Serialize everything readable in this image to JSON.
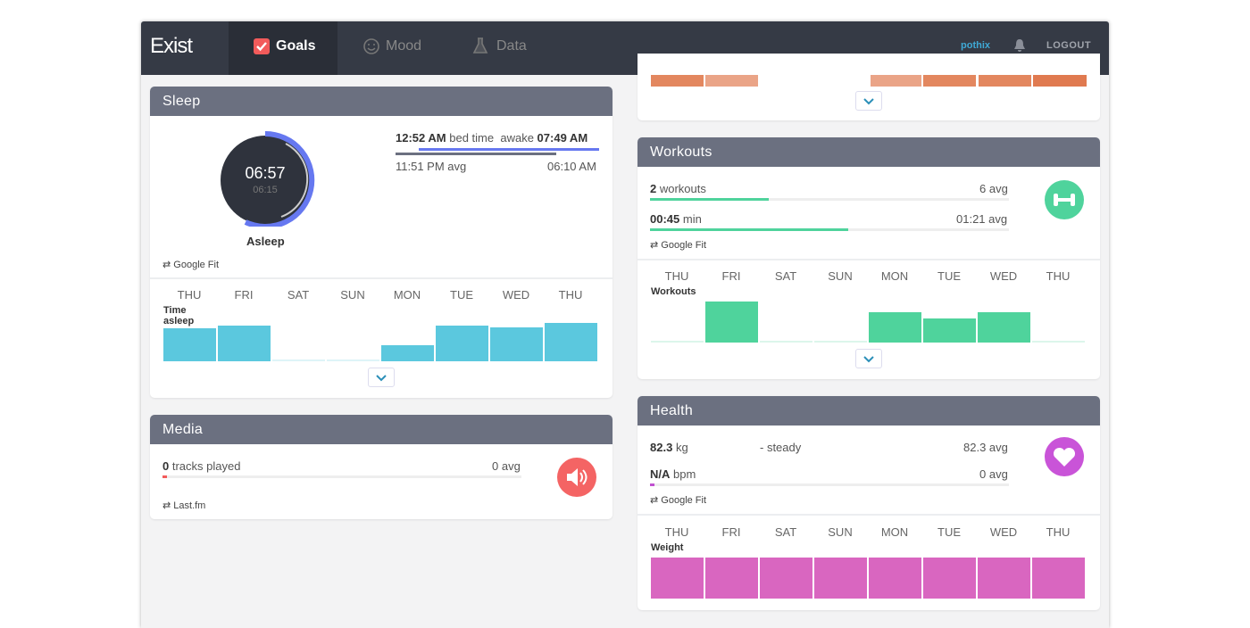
{
  "nav": {
    "logo": "Exist",
    "tabs": [
      "Goals",
      "Mood",
      "Data"
    ],
    "user": "pothix",
    "logout": "LOGOUT"
  },
  "sleep": {
    "title": "Sleep",
    "asleep_time": "06:57",
    "asleep_avg": "06:15",
    "asleep_label": "Asleep",
    "bed_time": "12:52 AM",
    "bed_label": "bed time",
    "awake_label": "awake",
    "awake_time": "07:49 AM",
    "bed_avg": "11:51 PM avg",
    "awake_avg": "06:10 AM",
    "source": "Google Fit",
    "chart": {
      "type": "bar",
      "title": "Time asleep",
      "categories": [
        "THU",
        "FRI",
        "SAT",
        "SUN",
        "MON",
        "TUE",
        "WED",
        "THU"
      ],
      "values": [
        6.0,
        6.6,
        0,
        0,
        2.9,
        6.5,
        6.2,
        6.95
      ],
      "ylim": [
        0,
        7.5
      ],
      "color": "#5bc8de"
    }
  },
  "media": {
    "title": "Media",
    "count": "0",
    "label": "tracks played",
    "avg": "0 avg",
    "source": "Last.fm"
  },
  "workouts": {
    "title": "Workouts",
    "rows": [
      {
        "value": "2",
        "label": "workouts",
        "avg": "6 avg"
      },
      {
        "value": "00:45",
        "label": "min",
        "avg": "01:21 avg"
      }
    ],
    "source": "Google Fit",
    "chart": {
      "type": "bar",
      "title": "Workouts",
      "categories": [
        "THU",
        "FRI",
        "SAT",
        "SUN",
        "MON",
        "TUE",
        "WED",
        "THU"
      ],
      "values": [
        0,
        90,
        0,
        0,
        66,
        52,
        66,
        0
      ],
      "ylim": [
        0,
        90
      ],
      "color": "#4fd39c"
    }
  },
  "health": {
    "title": "Health",
    "rows": [
      {
        "value": "82.3",
        "label": "kg",
        "note": "- steady",
        "avg": "82.3 avg"
      },
      {
        "value": "N/A",
        "label": "bpm",
        "avg": "0 avg"
      }
    ],
    "source": "Google Fit",
    "chart": {
      "type": "bar",
      "title": "Weight",
      "categories": [
        "THU",
        "FRI",
        "SAT",
        "SUN",
        "MON",
        "TUE",
        "WED",
        "THU"
      ],
      "values": [
        82.3,
        82.3,
        82.3,
        82.3,
        82.3,
        82.3,
        82.3,
        82.3
      ],
      "ylim": [
        0,
        82.3
      ],
      "color": "#d966c0"
    }
  }
}
